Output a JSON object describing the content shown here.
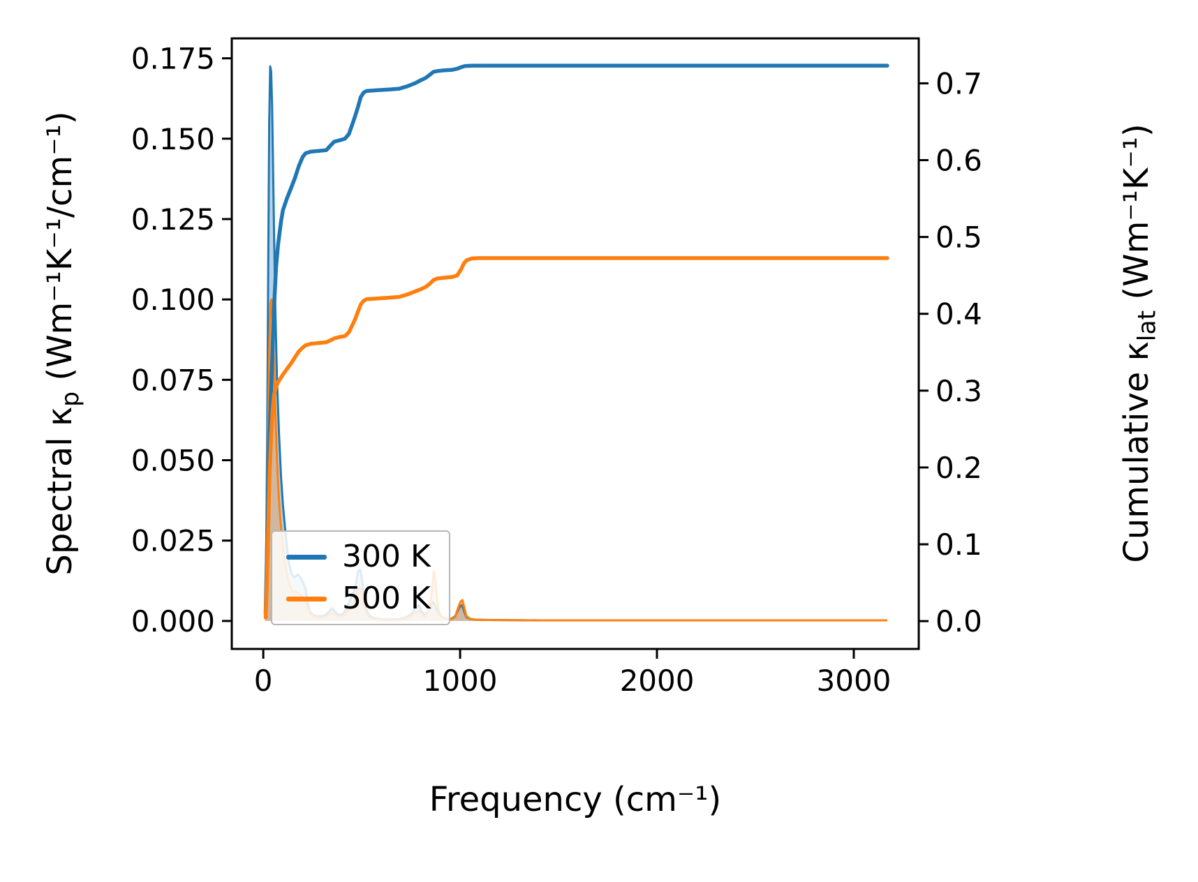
{
  "figure": {
    "background": "#ffffff"
  },
  "chart_data": {
    "type": "line",
    "title": "",
    "xlabel": "Frequency (cm⁻¹)",
    "ylabel_left": {
      "prefix": "Spectral κ",
      "sub": "p",
      "suffix": " (Wm⁻¹K⁻¹/cm⁻¹)"
    },
    "ylabel_right": {
      "prefix": "Cumulative κ",
      "sub": "lat",
      "suffix": " (Wm⁻¹K⁻¹)"
    },
    "grid": false,
    "legend_position": "lower left",
    "xlim": [
      -160,
      3330
    ],
    "ylim_left": [
      -0.0087,
      0.1812
    ],
    "ylim_right": [
      -0.0362,
      0.7585
    ],
    "xticks": {
      "values": [
        0,
        1000,
        2000,
        3000
      ],
      "labels": [
        "0",
        "1000",
        "2000",
        "3000"
      ]
    },
    "yticks_left": {
      "values": [
        0.0,
        0.025,
        0.05,
        0.075,
        0.1,
        0.125,
        0.15,
        0.175
      ],
      "labels": [
        "0.000",
        "0.025",
        "0.050",
        "0.075",
        "0.100",
        "0.125",
        "0.150",
        "0.175"
      ]
    },
    "yticks_right": {
      "values": [
        0.0,
        0.1,
        0.2,
        0.3,
        0.4,
        0.5,
        0.6,
        0.7
      ],
      "labels": [
        "0.0",
        "0.1",
        "0.2",
        "0.3",
        "0.4",
        "0.5",
        "0.6",
        "0.7"
      ]
    },
    "legend": [
      {
        "label": "300 K",
        "color": "#1f77b4"
      },
      {
        "label": "500 K",
        "color": "#ff7f0e"
      }
    ],
    "series": [
      {
        "name": "spectral-300K",
        "axis": "left",
        "style": "area",
        "color": "#1f77b4",
        "points": [
          [
            10,
            0.001
          ],
          [
            15,
            0.02
          ],
          [
            20,
            0.06
          ],
          [
            25,
            0.11
          ],
          [
            30,
            0.155
          ],
          [
            35,
            0.1725
          ],
          [
            40,
            0.171
          ],
          [
            45,
            0.16
          ],
          [
            50,
            0.14
          ],
          [
            55,
            0.12
          ],
          [
            62,
            0.095
          ],
          [
            70,
            0.075
          ],
          [
            80,
            0.058
          ],
          [
            90,
            0.045
          ],
          [
            100,
            0.036
          ],
          [
            115,
            0.026
          ],
          [
            130,
            0.018
          ],
          [
            145,
            0.0145
          ],
          [
            160,
            0.0135
          ],
          [
            175,
            0.0145
          ],
          [
            190,
            0.0135
          ],
          [
            205,
            0.0115
          ],
          [
            215,
            0.01
          ],
          [
            225,
            0.006
          ],
          [
            235,
            0.003
          ],
          [
            250,
            0.002
          ],
          [
            270,
            0.0015
          ],
          [
            300,
            0.0015
          ],
          [
            320,
            0.002
          ],
          [
            335,
            0.003
          ],
          [
            350,
            0.004
          ],
          [
            362,
            0.003
          ],
          [
            380,
            0.002
          ],
          [
            400,
            0.002
          ],
          [
            415,
            0.003
          ],
          [
            430,
            0.005
          ],
          [
            445,
            0.007
          ],
          [
            460,
            0.009
          ],
          [
            472,
            0.012
          ],
          [
            482,
            0.0155
          ],
          [
            492,
            0.016
          ],
          [
            502,
            0.013
          ],
          [
            512,
            0.007
          ],
          [
            522,
            0.004
          ],
          [
            535,
            0.002
          ],
          [
            555,
            0.001
          ],
          [
            580,
            0.0007
          ],
          [
            620,
            0.0005
          ],
          [
            680,
            0.0005
          ],
          [
            720,
            0.001
          ],
          [
            750,
            0.002
          ],
          [
            775,
            0.004
          ],
          [
            790,
            0.005
          ],
          [
            805,
            0.003
          ],
          [
            820,
            0.002
          ],
          [
            838,
            0.003
          ],
          [
            852,
            0.005
          ],
          [
            862,
            0.006
          ],
          [
            872,
            0.005
          ],
          [
            885,
            0.003
          ],
          [
            900,
            0.0015
          ],
          [
            925,
            0.0008
          ],
          [
            955,
            0.0006
          ],
          [
            975,
            0.0015
          ],
          [
            995,
            0.004
          ],
          [
            1008,
            0.005
          ],
          [
            1020,
            0.003
          ],
          [
            1032,
            0.0012
          ],
          [
            1050,
            0.0006
          ],
          [
            1080,
            0.0004
          ],
          [
            1150,
            0.0003
          ],
          [
            1400,
            0.0002
          ],
          [
            2000,
            0.0002
          ],
          [
            3170,
            0.0002
          ]
        ]
      },
      {
        "name": "spectral-500K",
        "axis": "left",
        "style": "area",
        "color": "#ff7f0e",
        "points": [
          [
            10,
            0.0005
          ],
          [
            15,
            0.012
          ],
          [
            20,
            0.035
          ],
          [
            25,
            0.062
          ],
          [
            30,
            0.085
          ],
          [
            37,
            0.099
          ],
          [
            42,
            0.1
          ],
          [
            48,
            0.093
          ],
          [
            54,
            0.082
          ],
          [
            60,
            0.068
          ],
          [
            68,
            0.053
          ],
          [
            76,
            0.042
          ],
          [
            85,
            0.033
          ],
          [
            95,
            0.026
          ],
          [
            108,
            0.019
          ],
          [
            122,
            0.014
          ],
          [
            136,
            0.0105
          ],
          [
            150,
            0.009
          ],
          [
            165,
            0.0092
          ],
          [
            180,
            0.0085
          ],
          [
            195,
            0.0078
          ],
          [
            208,
            0.0068
          ],
          [
            218,
            0.006
          ],
          [
            228,
            0.0035
          ],
          [
            240,
            0.002
          ],
          [
            260,
            0.0012
          ],
          [
            300,
            0.001
          ],
          [
            320,
            0.0013
          ],
          [
            335,
            0.002
          ],
          [
            350,
            0.0026
          ],
          [
            362,
            0.002
          ],
          [
            380,
            0.0013
          ],
          [
            400,
            0.0013
          ],
          [
            415,
            0.002
          ],
          [
            430,
            0.0032
          ],
          [
            445,
            0.0045
          ],
          [
            460,
            0.006
          ],
          [
            472,
            0.008
          ],
          [
            482,
            0.01
          ],
          [
            492,
            0.0102
          ],
          [
            502,
            0.008
          ],
          [
            512,
            0.0045
          ],
          [
            522,
            0.0026
          ],
          [
            535,
            0.0013
          ],
          [
            555,
            0.0007
          ],
          [
            580,
            0.0005
          ],
          [
            620,
            0.0003
          ],
          [
            680,
            0.0003
          ],
          [
            720,
            0.0007
          ],
          [
            750,
            0.0013
          ],
          [
            775,
            0.0026
          ],
          [
            790,
            0.0033
          ],
          [
            805,
            0.002
          ],
          [
            820,
            0.0013
          ],
          [
            838,
            0.0026
          ],
          [
            850,
            0.006
          ],
          [
            858,
            0.01
          ],
          [
            866,
            0.0155
          ],
          [
            874,
            0.013
          ],
          [
            882,
            0.007
          ],
          [
            892,
            0.0033
          ],
          [
            905,
            0.0015
          ],
          [
            925,
            0.0007
          ],
          [
            955,
            0.0005
          ],
          [
            975,
            0.0013
          ],
          [
            992,
            0.0045
          ],
          [
            1002,
            0.006
          ],
          [
            1012,
            0.0065
          ],
          [
            1022,
            0.004
          ],
          [
            1032,
            0.0015
          ],
          [
            1050,
            0.0007
          ],
          [
            1080,
            0.0004
          ],
          [
            1150,
            0.0003
          ],
          [
            1400,
            0.0002
          ],
          [
            2000,
            0.0002
          ],
          [
            3170,
            0.0002
          ]
        ]
      },
      {
        "name": "cumulative-300K",
        "axis": "right",
        "style": "line",
        "color": "#1f77b4",
        "points": [
          [
            12,
            0.01
          ],
          [
            18,
            0.08
          ],
          [
            25,
            0.17
          ],
          [
            32,
            0.24
          ],
          [
            40,
            0.3
          ],
          [
            48,
            0.36
          ],
          [
            55,
            0.41
          ],
          [
            65,
            0.46
          ],
          [
            75,
            0.49
          ],
          [
            90,
            0.52
          ],
          [
            100,
            0.535
          ],
          [
            120,
            0.55
          ],
          [
            140,
            0.563
          ],
          [
            160,
            0.576
          ],
          [
            180,
            0.592
          ],
          [
            200,
            0.604
          ],
          [
            215,
            0.609
          ],
          [
            240,
            0.611
          ],
          [
            280,
            0.612
          ],
          [
            320,
            0.613
          ],
          [
            345,
            0.62
          ],
          [
            360,
            0.624
          ],
          [
            390,
            0.626
          ],
          [
            415,
            0.628
          ],
          [
            435,
            0.634
          ],
          [
            450,
            0.645
          ],
          [
            465,
            0.656
          ],
          [
            480,
            0.668
          ],
          [
            495,
            0.682
          ],
          [
            510,
            0.688
          ],
          [
            525,
            0.69
          ],
          [
            580,
            0.691
          ],
          [
            640,
            0.692
          ],
          [
            690,
            0.693
          ],
          [
            730,
            0.696
          ],
          [
            770,
            0.7
          ],
          [
            800,
            0.704
          ],
          [
            825,
            0.707
          ],
          [
            845,
            0.711
          ],
          [
            865,
            0.715
          ],
          [
            885,
            0.716
          ],
          [
            920,
            0.717
          ],
          [
            960,
            0.7175
          ],
          [
            985,
            0.719
          ],
          [
            1005,
            0.721
          ],
          [
            1025,
            0.7225
          ],
          [
            1060,
            0.723
          ],
          [
            3170,
            0.723
          ]
        ]
      },
      {
        "name": "cumulative-500K",
        "axis": "right",
        "style": "line",
        "color": "#ff7f0e",
        "points": [
          [
            12,
            0.005
          ],
          [
            18,
            0.05
          ],
          [
            25,
            0.12
          ],
          [
            32,
            0.19
          ],
          [
            40,
            0.24
          ],
          [
            48,
            0.275
          ],
          [
            55,
            0.295
          ],
          [
            65,
            0.305
          ],
          [
            75,
            0.311
          ],
          [
            90,
            0.317
          ],
          [
            100,
            0.321
          ],
          [
            120,
            0.328
          ],
          [
            140,
            0.335
          ],
          [
            160,
            0.343
          ],
          [
            180,
            0.351
          ],
          [
            200,
            0.356
          ],
          [
            215,
            0.359
          ],
          [
            240,
            0.361
          ],
          [
            280,
            0.362
          ],
          [
            320,
            0.363
          ],
          [
            345,
            0.366
          ],
          [
            360,
            0.368
          ],
          [
            390,
            0.37
          ],
          [
            415,
            0.371
          ],
          [
            435,
            0.376
          ],
          [
            450,
            0.384
          ],
          [
            465,
            0.392
          ],
          [
            480,
            0.402
          ],
          [
            495,
            0.412
          ],
          [
            510,
            0.417
          ],
          [
            525,
            0.419
          ],
          [
            580,
            0.42
          ],
          [
            640,
            0.421
          ],
          [
            690,
            0.422
          ],
          [
            730,
            0.425
          ],
          [
            770,
            0.429
          ],
          [
            800,
            0.432
          ],
          [
            825,
            0.435
          ],
          [
            845,
            0.439
          ],
          [
            865,
            0.444
          ],
          [
            885,
            0.446
          ],
          [
            920,
            0.447
          ],
          [
            960,
            0.448
          ],
          [
            985,
            0.45
          ],
          [
            1005,
            0.458
          ],
          [
            1020,
            0.466
          ],
          [
            1035,
            0.47
          ],
          [
            1060,
            0.472
          ],
          [
            1100,
            0.4725
          ],
          [
            3170,
            0.4725
          ]
        ]
      }
    ]
  }
}
